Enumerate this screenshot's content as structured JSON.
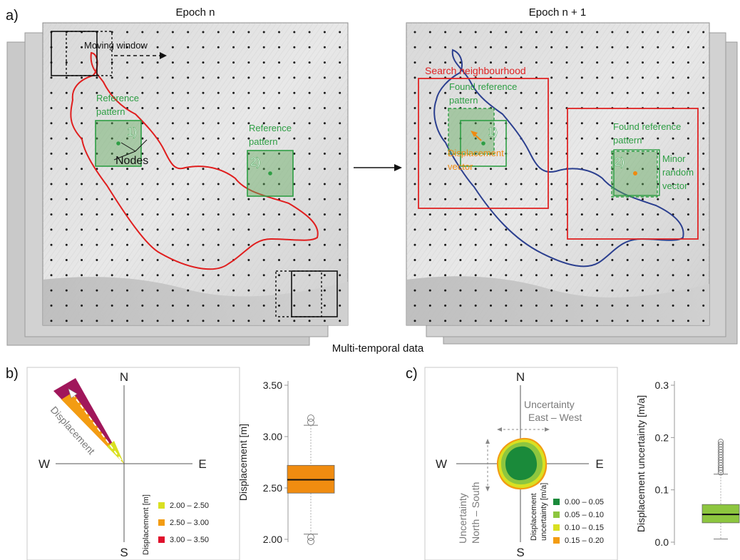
{
  "panel_labels": {
    "a": "a)",
    "b": "b)",
    "c": "c)"
  },
  "panel_a": {
    "epoch_left": "Epoch n",
    "epoch_right": "Epoch n + 1",
    "moving_window": "Moving window",
    "reference_pattern_line1": "Reference",
    "reference_pattern_line2": "pattern",
    "nodes": "Nodes",
    "marker_1": "1)",
    "marker_2": "2)",
    "search_neighbourhood": "Search neighbourhood",
    "found_reference_line1": "Found reference",
    "found_reference_line2": "pattern",
    "displacement_vector_line1": "Displacement",
    "displacement_vector_line2": "vector",
    "minor_random_line1": "Minor",
    "minor_random_line2": "random",
    "minor_random_line3": "vector",
    "multi_temporal": "Multi-temporal data"
  },
  "compass": {
    "n": "N",
    "s": "S",
    "w": "W",
    "e": "E"
  },
  "panel_b": {
    "arrow_label": "Displacement",
    "legend_title": "Displacement [m]",
    "legend": [
      {
        "label": "2.00 – 2.50",
        "color": "#d9e021"
      },
      {
        "label": "2.50 – 3.00",
        "color": "#f39c12"
      },
      {
        "label": "3.00 – 3.50",
        "color": "#e0102c"
      }
    ],
    "rose_color": "#a0175b",
    "box_chart": {
      "type": "box",
      "ylabel": "Displacement [m]",
      "yticks": [
        "2.00",
        "2.50",
        "3.00",
        "3.50"
      ],
      "ylim": [
        2.0,
        3.5
      ],
      "q1": 2.45,
      "median": 2.58,
      "q3": 2.72,
      "whisker_low": 2.05,
      "whisker_high": 3.11,
      "outliers": [
        1.98,
        2.02,
        3.14,
        3.18
      ],
      "fill": "#f08c10"
    }
  },
  "panel_c": {
    "uncert_ew_line1": "Uncertainty",
    "uncert_ew_line2": "East – West",
    "uncert_ns_line1": "Uncertainty",
    "uncert_ns_line2": "North – South",
    "legend_title_line1": "Displacement",
    "legend_title_line2": "uncertainty [m/a]",
    "legend": [
      {
        "label": "0.00 – 0.05",
        "color": "#1a8a3a"
      },
      {
        "label": "0.05 – 0.10",
        "color": "#8dc63f"
      },
      {
        "label": "0.10 – 0.15",
        "color": "#d9e021"
      },
      {
        "label": "0.15 – 0.20",
        "color": "#f39c12"
      }
    ],
    "box_chart": {
      "type": "box",
      "ylabel": "Displacement uncertainty [m/a]",
      "yticks": [
        "0.0",
        "0.1",
        "0.2",
        "0.3"
      ],
      "ylim": [
        0.0,
        0.3
      ],
      "q1": 0.037,
      "median": 0.053,
      "q3": 0.072,
      "whisker_low": 0.006,
      "whisker_high": 0.13,
      "outliers": [
        0.133,
        0.138,
        0.142,
        0.147,
        0.152,
        0.157,
        0.162,
        0.167,
        0.172,
        0.177,
        0.182,
        0.187,
        0.192
      ],
      "fill": "#8dc63f"
    }
  }
}
